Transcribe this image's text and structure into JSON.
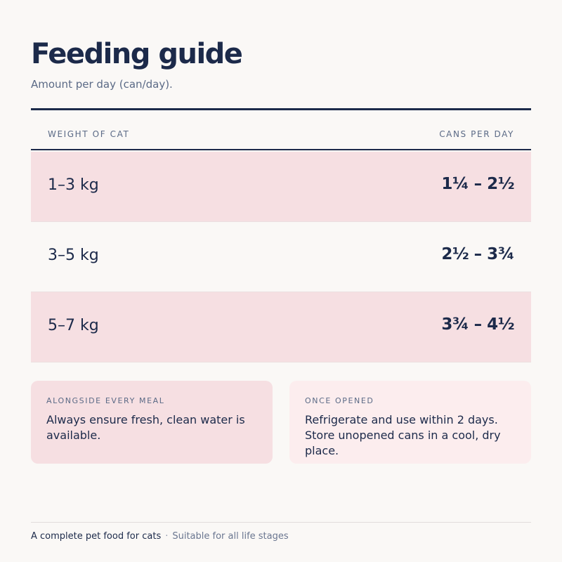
{
  "header": {
    "title": "Feeding guide",
    "subtitle": "Amount per day (can/day)."
  },
  "table": {
    "columns": [
      "WEIGHT OF CAT",
      "CANS PER DAY"
    ],
    "rows": [
      {
        "weight": "1–3 kg",
        "cans": "1¼ – 2½"
      },
      {
        "weight": "3–5 kg",
        "cans": "2½ – 3¾"
      },
      {
        "weight": "5–7 kg",
        "cans": "3¾ – 4½"
      }
    ]
  },
  "cards": [
    {
      "label": "ALONGSIDE EVERY MEAL",
      "text": "Always ensure fresh, clean water is available."
    },
    {
      "label": "ONCE OPENED",
      "text": "Refrigerate and use within 2 days. Store unopened cans in a cool, dry place."
    }
  ],
  "footer": {
    "primary": "A complete pet food for cats",
    "separator": "·",
    "secondary": "Suitable for all life stages"
  },
  "colors": {
    "navy": "#1c2a4a",
    "pink_row": "#f6dfe2",
    "pink_card_light": "#fcedee",
    "background": "#faf8f6"
  }
}
